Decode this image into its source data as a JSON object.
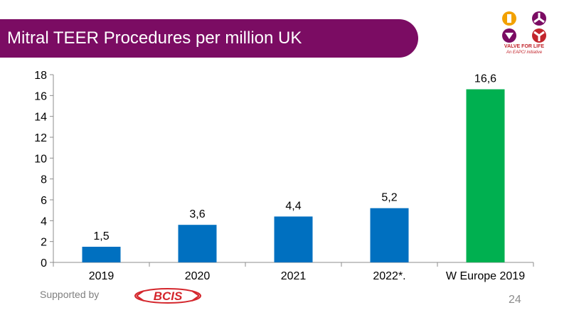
{
  "slide": {
    "title": "Mitral TEER Procedures per million UK",
    "logo_line1": "VALVE FOR LIFE",
    "logo_line2": "An EAPCI initiative",
    "footer_label": "Supported by",
    "sponsor_logo_text": "BCIS",
    "page_number": "24"
  },
  "colors": {
    "title_bar": "#7b0c63",
    "bar_default": "#0070c0",
    "bar_highlight": "#00b050",
    "logo": "#7b0c63",
    "sponsor": "#d4262c"
  },
  "chart_data": {
    "type": "bar",
    "categories": [
      "2019",
      "2020",
      "2021",
      "2022*.",
      "W Europe 2019"
    ],
    "values": [
      1.5,
      3.6,
      4.4,
      5.2,
      16.6
    ],
    "data_labels": [
      "1,5",
      "3,6",
      "4,4",
      "5,2",
      "16,6"
    ],
    "bar_colors": [
      "#0070c0",
      "#0070c0",
      "#0070c0",
      "#0070c0",
      "#00b050"
    ],
    "ylim": [
      0,
      18
    ],
    "y_ticks": [
      0,
      2,
      4,
      6,
      8,
      10,
      12,
      14,
      16,
      18
    ],
    "grid": false,
    "legend": "none"
  }
}
